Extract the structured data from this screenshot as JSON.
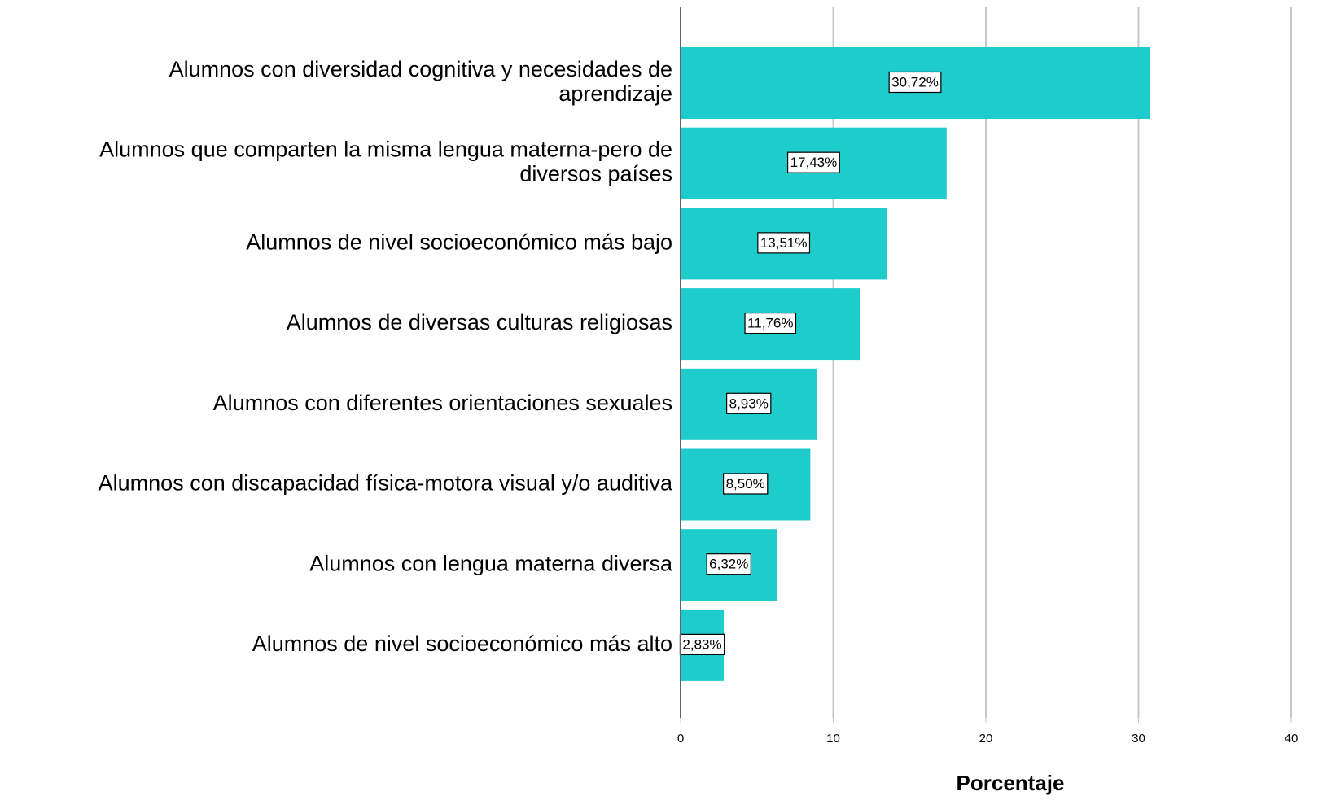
{
  "chart_data": {
    "type": "barh",
    "categories": [
      "Alumnos con diversidad cognitiva y necesidades de\naprendizaje",
      "Alumnos que comparten la misma lengua materna-pero de\ndiversos países",
      "Alumnos de nivel socioeconómico más bajo",
      "Alumnos de diversas culturas religiosas",
      "Alumnos con diferentes orientaciones sexuales",
      "Alumnos con discapacidad física-motora visual y/o auditiva",
      "Alumnos con lengua materna diversa",
      "Alumnos de nivel socioeconómico más alto"
    ],
    "values": [
      30.72,
      17.43,
      13.51,
      11.76,
      8.93,
      8.5,
      6.32,
      2.83
    ],
    "value_labels": [
      "30,72%",
      "17,43%",
      "13,51%",
      "11,76%",
      "8,93%",
      "8,50%",
      "6,32%",
      "2,83%"
    ],
    "color": "#1fcccc",
    "xlabel": "Porcentaje",
    "xlim": [
      0,
      43.2
    ],
    "xticks": [
      0,
      10,
      20,
      30,
      40
    ],
    "grid": true
  }
}
